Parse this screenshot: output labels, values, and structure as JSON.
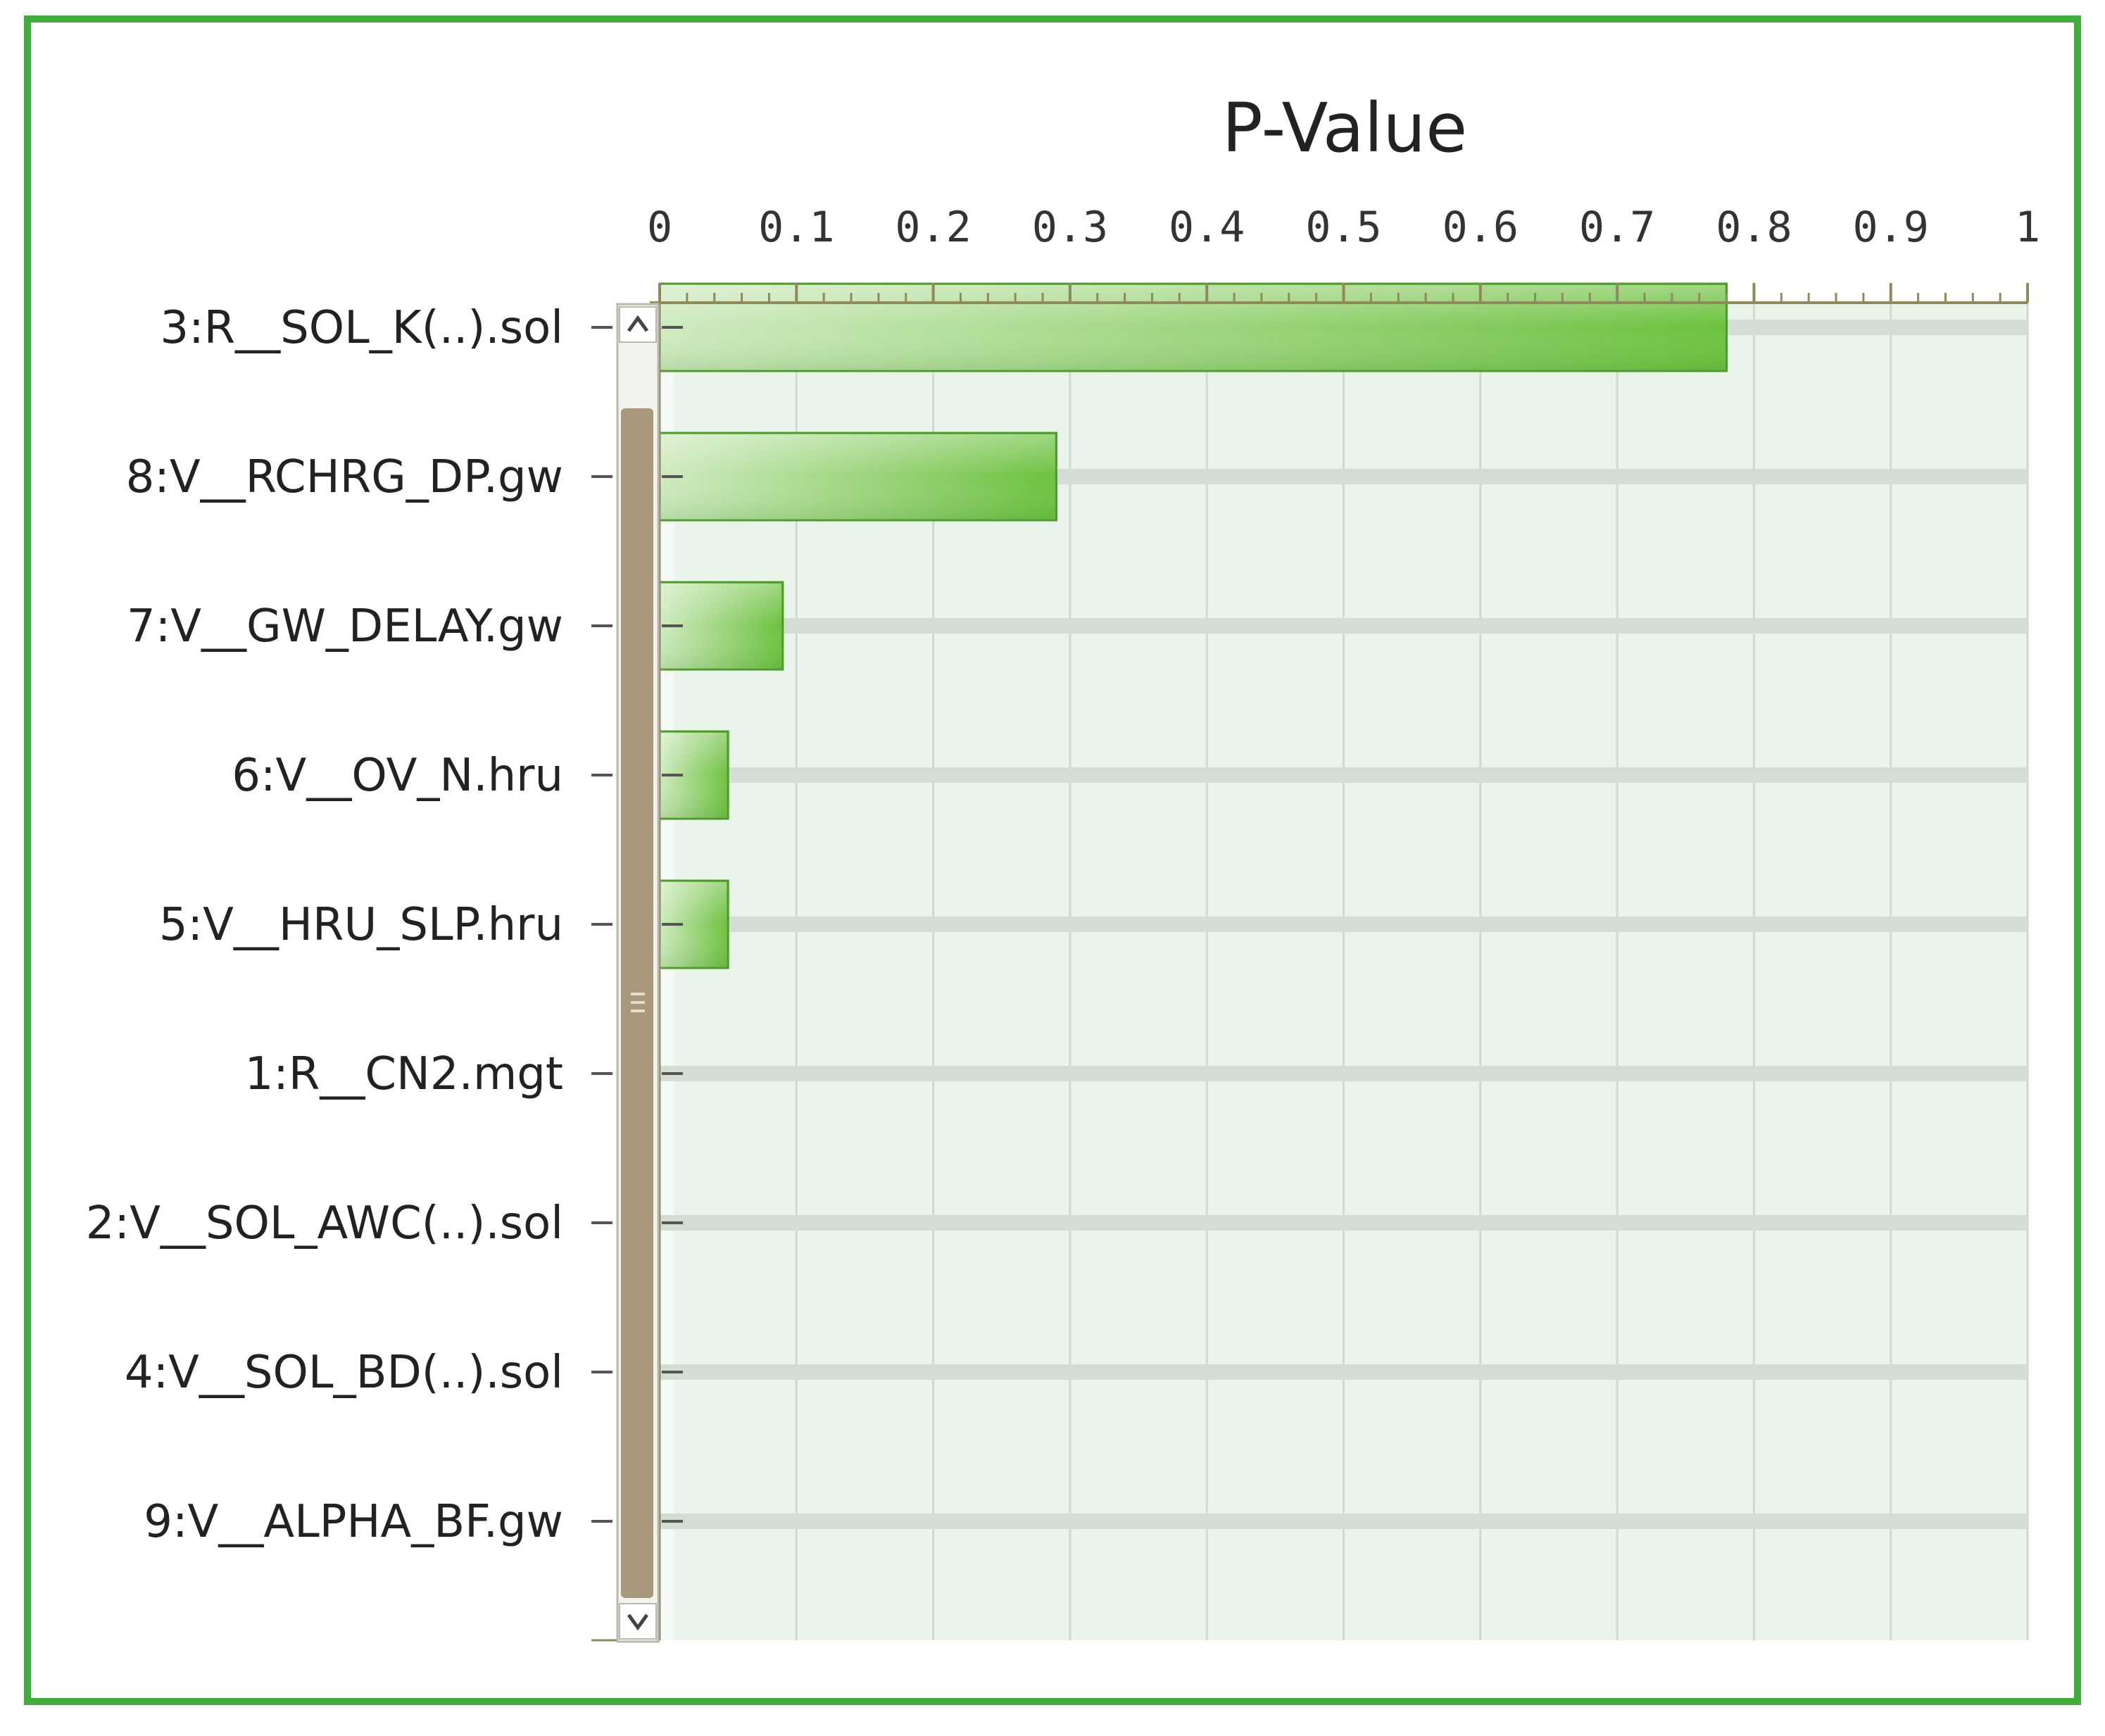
{
  "chart_data": {
    "type": "bar",
    "orientation": "horizontal",
    "title": "P-Value",
    "categories": [
      "3:R__SOL_K(..).sol",
      "8:V__RCHRG_DP.gw",
      "7:V__GW_DELAY.gw",
      "6:V__OV_N.hru",
      "5:V__HRU_SLP.hru",
      "1:R__CN2.mgt",
      "2:V__SOL_AWC(..).sol",
      "4:V__SOL_BD(..).sol",
      "9:V__ALPHA_BF.gw"
    ],
    "values": [
      0.78,
      0.29,
      0.09,
      0.05,
      0.05,
      0,
      0,
      0,
      0
    ],
    "xlim": [
      0,
      1
    ],
    "xticks": [
      "0",
      "0.1",
      "0.2",
      "0.3",
      "0.4",
      "0.5",
      "0.6",
      "0.7",
      "0.8",
      "0.9",
      "1"
    ],
    "grid": true,
    "axis_position": "top",
    "colors": {
      "bar": "#6cc13e",
      "bar_light": "#cfeabf",
      "plot_bg": "#e9f5ea",
      "grid": "#cfd9cf",
      "frame": "#3fae3a",
      "scrollbar": "#a8987c"
    }
  },
  "scrollbar": {
    "up_icon": "chevron-up-icon",
    "down_icon": "chevron-down-icon",
    "grip_icon": "grip-icon"
  }
}
